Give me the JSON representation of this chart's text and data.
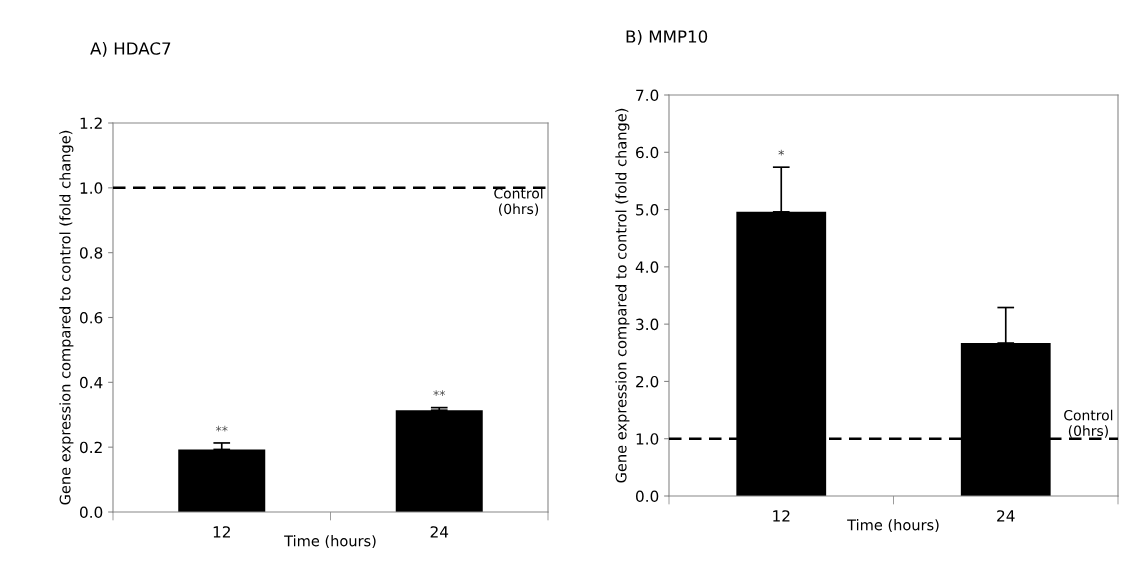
{
  "chart_data": [
    {
      "type": "bar",
      "title": "A) HDAC7",
      "xlabel": "Time (hours)",
      "ylabel": "Gene expression compared to control (fold change)",
      "categories": [
        "12",
        "24"
      ],
      "values": [
        0.193,
        0.314
      ],
      "errors": [
        0.02,
        0.008
      ],
      "color": "#000000",
      "ylim": [
        0,
        1.2
      ],
      "yticks": [
        {
          "value": 0,
          "label": "0.0"
        },
        0.2,
        0.4,
        0.6,
        0.8,
        {
          "value": 1,
          "label": "1.0"
        },
        1.2
      ],
      "ref_lines": [
        {
          "axis": "y",
          "value": 1.0,
          "label": "Control\n(0hrs)",
          "color": "#000000",
          "line_style": "dashed"
        }
      ],
      "annotations": [
        {
          "text": "**",
          "x": "12",
          "y": 0.212
        },
        {
          "text": "**",
          "x": "24",
          "y": 0.322
        }
      ],
      "grid": false,
      "legend": false
    },
    {
      "type": "bar",
      "title": "B) MMP10",
      "xlabel": "Time (hours)",
      "ylabel": "Gene expression compared to control (fold change)",
      "categories": [
        "12",
        "24"
      ],
      "values": [
        4.96,
        2.67
      ],
      "errors": [
        0.78,
        0.62
      ],
      "color": "#000000",
      "ylim": [
        0,
        7
      ],
      "yticks": [
        {
          "value": 0,
          "label": "0.0"
        },
        {
          "value": 1,
          "label": "1.0"
        },
        {
          "value": 2,
          "label": "2.0"
        },
        {
          "value": 3,
          "label": "3.0"
        },
        {
          "value": 4,
          "label": "4.0"
        },
        {
          "value": 5,
          "label": "5.0"
        },
        {
          "value": 6,
          "label": "6.0"
        },
        {
          "value": 7,
          "label": "7.0"
        }
      ],
      "ref_lines": [
        {
          "axis": "y",
          "value": 1.0,
          "label": "Control\n(0hrs)",
          "color": "#000000",
          "line_style": "dashed"
        }
      ],
      "annotations": [
        {
          "text": "*",
          "x": "12",
          "y": 5.74
        }
      ],
      "grid": false,
      "legend": false
    }
  ]
}
